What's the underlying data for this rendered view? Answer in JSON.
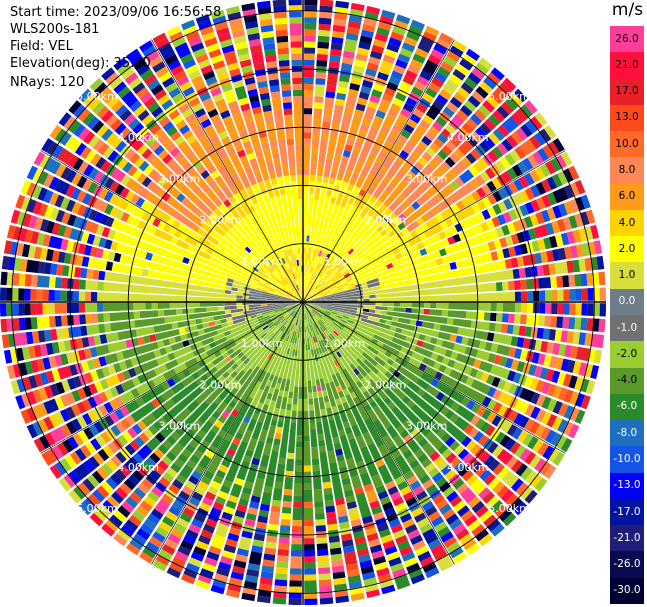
{
  "header": {
    "start_time": "Start time: 2023/09/06 16:56:58",
    "instrument": "WLS200s-181",
    "field": "Field: VEL",
    "elevation": "Elevation(deg): 35.30",
    "nrays": "NRays: 120"
  },
  "colorbar": {
    "unit": "m/s",
    "levels": [
      {
        "label": "26.0",
        "color": "#ff3d9b"
      },
      {
        "label": "21.0",
        "color": "#ff0f3c"
      },
      {
        "label": "17.0",
        "color": "#e8202a"
      },
      {
        "label": "13.0",
        "color": "#ff4a1c"
      },
      {
        "label": "10.0",
        "color": "#ff6a28"
      },
      {
        "label": "8.0",
        "color": "#ff8855"
      },
      {
        "label": "6.0",
        "color": "#ff9a1a"
      },
      {
        "label": "4.0",
        "color": "#ffd400"
      },
      {
        "label": "2.0",
        "color": "#ffff00"
      },
      {
        "label": "1.0",
        "color": "#d8de3c"
      },
      {
        "label": "0.0",
        "color": "#6d7d8a"
      },
      {
        "label": "-1.0",
        "color": "#707070"
      },
      {
        "label": "-2.0",
        "color": "#9acd32"
      },
      {
        "label": "-4.0",
        "color": "#5a9a2a"
      },
      {
        "label": "-6.0",
        "color": "#2b8b2b"
      },
      {
        "label": "-8.0",
        "color": "#1e6fbd"
      },
      {
        "label": "-10.0",
        "color": "#1454e6"
      },
      {
        "label": "-13.0",
        "color": "#0000ff"
      },
      {
        "label": "-17.0",
        "color": "#0014a0"
      },
      {
        "label": "-21.0",
        "color": "#1e1e78"
      },
      {
        "label": "-26.0",
        "color": "#0a0a50"
      },
      {
        "label": "-30.0",
        "color": "#000032"
      }
    ]
  },
  "ppi": {
    "range_rings": [
      "1.00km",
      "2.00km",
      "3.00km",
      "4.00km",
      "5.00km"
    ],
    "spokes_deg": [
      0,
      30,
      60,
      90,
      120,
      150
    ],
    "n_rays": 120
  }
}
